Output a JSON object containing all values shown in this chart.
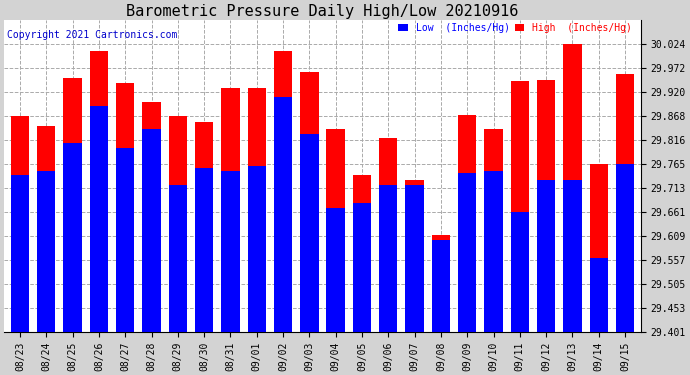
{
  "title": "Barometric Pressure Daily High/Low 20210916",
  "copyright": "Copyright 2021 Cartronics.com",
  "legend_low": "Low  (Inches/Hg)",
  "legend_high": "High  (Inches/Hg)",
  "dates": [
    "08/23",
    "08/24",
    "08/25",
    "08/26",
    "08/27",
    "08/28",
    "08/29",
    "08/30",
    "08/31",
    "09/01",
    "09/02",
    "09/03",
    "09/04",
    "09/05",
    "09/06",
    "09/07",
    "09/08",
    "09/09",
    "09/10",
    "09/11",
    "09/12",
    "09/13",
    "09/14",
    "09/15"
  ],
  "low_values": [
    29.74,
    29.75,
    29.81,
    29.89,
    29.8,
    29.84,
    29.72,
    29.755,
    29.75,
    29.76,
    29.91,
    29.83,
    29.67,
    29.68,
    29.72,
    29.72,
    29.6,
    29.745,
    29.75,
    29.66,
    29.73,
    29.73,
    29.56,
    29.765
  ],
  "high_values": [
    29.868,
    29.848,
    29.95,
    30.01,
    29.94,
    29.9,
    29.868,
    29.855,
    29.93,
    29.93,
    30.01,
    29.965,
    29.84,
    29.74,
    29.82,
    29.73,
    29.61,
    29.87,
    29.84,
    29.944,
    29.946,
    30.024,
    29.765,
    29.96
  ],
  "low_color": "#0000ff",
  "high_color": "#ff0000",
  "bg_color": "#d3d3d3",
  "plot_bg_color": "#ffffff",
  "ylim_min": 29.401,
  "ylim_max": 30.076,
  "yticks": [
    29.401,
    29.453,
    29.505,
    29.557,
    29.609,
    29.661,
    29.713,
    29.765,
    29.816,
    29.868,
    29.92,
    29.972,
    30.024
  ],
  "grid_color": "#aaaaaa",
  "title_color": "#000000",
  "title_fontsize": 11,
  "bar_width": 0.7,
  "legend_low_color": "#0000ff",
  "legend_high_color": "#ff0000",
  "copyright_color": "#0000cc",
  "tick_fontsize": 7,
  "copyright_fontsize": 7
}
